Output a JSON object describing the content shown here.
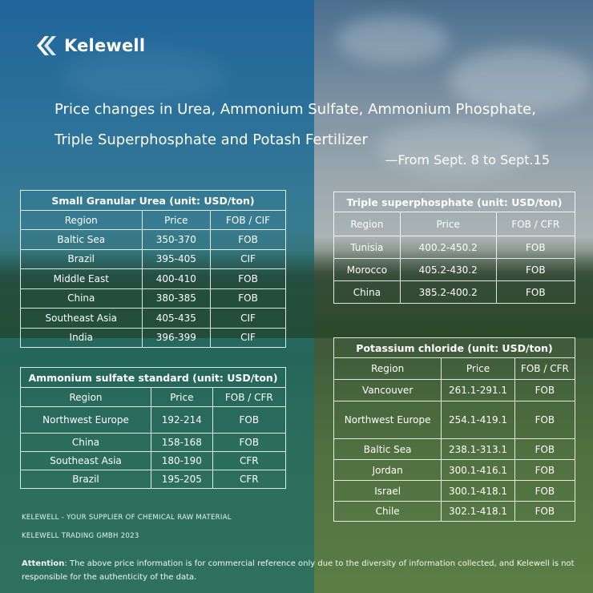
{
  "brand": {
    "name": "Kelewell"
  },
  "title": {
    "line1": "Price changes in Urea, Ammonium Sulfate, Ammonium Phosphate,",
    "line2": "Triple Superphosphate and Potash Fertilizer",
    "range": "—From Sept. 8 to Sept.15"
  },
  "tables": {
    "urea": {
      "caption": "Small Granular Urea (unit: USD/ton)",
      "headers": [
        "Region",
        "Price",
        "FOB / CIF"
      ],
      "rows": [
        [
          "Baltic Sea",
          "350-370",
          "FOB"
        ],
        [
          "Brazil",
          "395-405",
          "CIF"
        ],
        [
          "Middle East",
          "400-410",
          "FOB"
        ],
        [
          "China",
          "380-385",
          "FOB"
        ],
        [
          "Southeast Asia",
          "405-435",
          "CIF"
        ],
        [
          "India",
          "396-399",
          "CIF"
        ]
      ]
    },
    "ammonium": {
      "caption": "Ammonium sulfate standard (unit: USD/ton)",
      "headers": [
        "Region",
        "Price",
        "FOB / CFR"
      ],
      "rows": [
        [
          "Northwest Europe",
          "192-214",
          "FOB"
        ],
        [
          "China",
          "158-168",
          "FOB"
        ],
        [
          "Southeast Asia",
          "180-190",
          "CFR"
        ],
        [
          "Brazil",
          "195-205",
          "CFR"
        ]
      ]
    },
    "tsp": {
      "caption": "Triple superphosphate (unit: USD/ton)",
      "headers": [
        "Region",
        "Price",
        "FOB / CFR"
      ],
      "rows": [
        [
          "Tunisia",
          "400.2-450.2",
          "FOB"
        ],
        [
          "Morocco",
          "405.2-430.2",
          "FOB"
        ],
        [
          "China",
          "385.2-400.2",
          "FOB"
        ]
      ]
    },
    "potassium": {
      "caption": "Potassium chloride (unit: USD/ton)",
      "headers": [
        "Region",
        "Price",
        "FOB / CFR"
      ],
      "rows": [
        [
          "Vancouver",
          "261.1-291.1",
          "FOB"
        ],
        [
          "Northwest Europe",
          "254.1-419.1",
          "FOB"
        ],
        [
          "Baltic Sea",
          "238.1-313.1",
          "FOB"
        ],
        [
          "Jordan",
          "300.1-416.1",
          "FOB"
        ],
        [
          "Israel",
          "300.1-418.1",
          "FOB"
        ],
        [
          "Chile",
          "302.1-418.1",
          "FOB"
        ]
      ]
    }
  },
  "footer": {
    "line1": "KELEWELL -  YOUR SUPPLIER OF CHEMICAL RAW MATERIAL",
    "line2": "KELEWELL TRADING GMBH 2023",
    "attention_label": "Attention",
    "attention_text": ": The above price information is for commercial reference only due to the diversity of information collected, and Kelewell is not responsible for the authenticity of the data."
  }
}
